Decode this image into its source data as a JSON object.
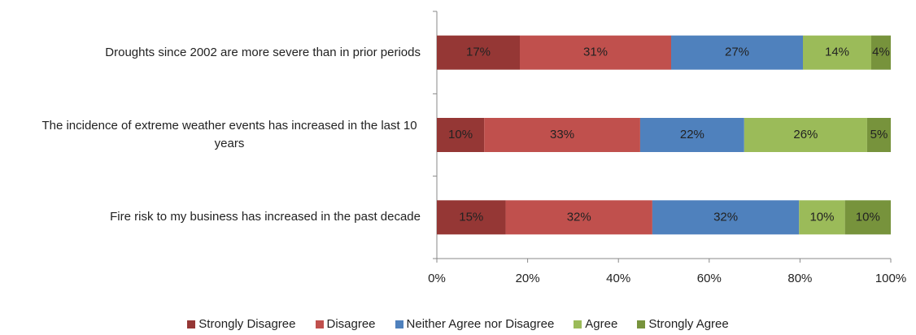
{
  "chart_data": {
    "type": "bar",
    "orientation": "horizontal",
    "stacked": "percent",
    "categories": [
      "Droughts since 2002 are more severe than in prior periods",
      "The incidence of extreme weather events has increased in the last 10 years",
      "Fire risk to my business has increased in the past decade"
    ],
    "series": [
      {
        "name": "Strongly Disagree",
        "color": "#953735",
        "values": [
          17,
          10,
          15
        ],
        "value_labels": [
          "17%",
          "10%",
          "15%"
        ]
      },
      {
        "name": "Disagree",
        "color": "#c0504d",
        "values": [
          31,
          33,
          32
        ],
        "value_labels": [
          "31%",
          "33%",
          "32%"
        ]
      },
      {
        "name": "Neither Agree nor Disagree",
        "color": "#4f81bd",
        "values": [
          27,
          22,
          32
        ],
        "value_labels": [
          "27%",
          "22%",
          "32%"
        ]
      },
      {
        "name": "Agree",
        "color": "#9bbb59",
        "values": [
          14,
          26,
          10
        ],
        "value_labels": [
          "14%",
          "26%",
          "10%"
        ]
      },
      {
        "name": "Strongly Agree",
        "color": "#77933c",
        "values": [
          4,
          5,
          10
        ],
        "value_labels": [
          "4%",
          "5%",
          "10%"
        ]
      }
    ],
    "xlim": [
      0,
      100
    ],
    "xticks": [
      {
        "value": 0,
        "label": "0%"
      },
      {
        "value": 20,
        "label": "20%"
      },
      {
        "value": 40,
        "label": "40%"
      },
      {
        "value": 60,
        "label": "60%"
      },
      {
        "value": 80,
        "label": "80%"
      },
      {
        "value": 100,
        "label": "100%"
      }
    ],
    "legend": "bottom"
  }
}
